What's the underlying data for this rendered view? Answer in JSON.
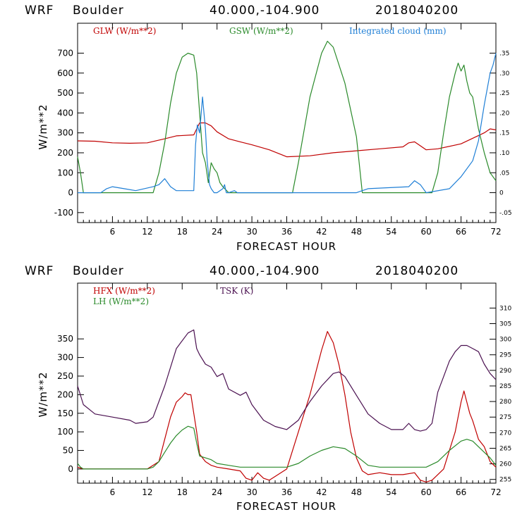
{
  "colors": {
    "red": "#c00000",
    "green": "#2a8a2a",
    "blue": "#1f7fd6",
    "purple": "#4a1050",
    "black": "#000000"
  },
  "chart_data": [
    {
      "type": "line",
      "header": {
        "model": "WRF",
        "site": "Boulder",
        "coords": "40.000,-104.900",
        "init": "2018040200"
      },
      "xlabel": "FORECAST HOUR",
      "ylabel": "W/m**2",
      "xlim": [
        0,
        72
      ],
      "x_ticks": [
        "6",
        "12",
        "18",
        "24",
        "30",
        "36",
        "42",
        "48",
        "54",
        "60",
        "66",
        "72"
      ],
      "ylim": [
        -150,
        850
      ],
      "y_ticks": [
        "-100",
        "0",
        "100",
        "200",
        "300",
        "400",
        "500",
        "600",
        "700"
      ],
      "y2lim": [
        -0.075,
        0.425
      ],
      "y2_ticks": [
        "-.05",
        "0",
        ".05",
        ".10",
        ".15",
        ".20",
        ".25",
        ".30",
        ".35"
      ],
      "legend": [
        "GLW (W/m**2)",
        "GSW (W/m**2)",
        "Integrated cloud (mm)"
      ],
      "series": [
        {
          "name": "GLW (W/m**2)",
          "color": "red",
          "axis": "left",
          "x": [
            0,
            3,
            6,
            9,
            12,
            15,
            17,
            20,
            21,
            22,
            23,
            24,
            26,
            28,
            30,
            33,
            36,
            40,
            44,
            48,
            52,
            56,
            57,
            58,
            59,
            60,
            62,
            66,
            70,
            71,
            72
          ],
          "y": [
            260,
            258,
            250,
            248,
            250,
            270,
            285,
            290,
            350,
            350,
            335,
            305,
            270,
            255,
            240,
            215,
            180,
            185,
            200,
            210,
            220,
            230,
            250,
            255,
            235,
            215,
            220,
            245,
            300,
            320,
            315
          ]
        },
        {
          "name": "GSW (W/m**2)",
          "color": "green",
          "axis": "left",
          "x": [
            0,
            0.5,
            1,
            13,
            14,
            15,
            16,
            17,
            18,
            19,
            20,
            20.5,
            21,
            21.5,
            22,
            22.5,
            23,
            23.5,
            24,
            24.5,
            25,
            26,
            37,
            38,
            40,
            42,
            43,
            44,
            46,
            48,
            49,
            61,
            62,
            63,
            64,
            65,
            65.5,
            66,
            66.5,
            67,
            67.5,
            68,
            69,
            70,
            71,
            72
          ],
          "y": [
            180,
            100,
            0,
            0,
            100,
            250,
            450,
            600,
            680,
            700,
            690,
            600,
            400,
            200,
            150,
            50,
            150,
            120,
            100,
            50,
            30,
            0,
            0,
            150,
            480,
            700,
            760,
            730,
            550,
            280,
            0,
            0,
            100,
            300,
            480,
            600,
            650,
            610,
            640,
            560,
            500,
            480,
            320,
            200,
            100,
            60
          ]
        },
        {
          "name": "Integrated cloud (mm)",
          "color": "blue",
          "axis": "right",
          "x": [
            0,
            4,
            5,
            6,
            8,
            10,
            13,
            14,
            15,
            16,
            17,
            20,
            20.3,
            20.6,
            21,
            21.5,
            22,
            22.3,
            22.7,
            23,
            23.5,
            24,
            24.5,
            25,
            25.3,
            25.6,
            26,
            27,
            27.5,
            28,
            48,
            49,
            50,
            57,
            58,
            59,
            60,
            64,
            66,
            68,
            69,
            70,
            71,
            71.5,
            72
          ],
          "y": [
            0,
            0,
            0.01,
            0.015,
            0.01,
            0.005,
            0.015,
            0.02,
            0.035,
            0.015,
            0.005,
            0.005,
            0.12,
            0.17,
            0.15,
            0.24,
            0.16,
            0.08,
            0.02,
            0.01,
            0,
            0,
            0.005,
            0.01,
            0.02,
            0,
            0,
            0.005,
            0,
            0,
            0,
            0.005,
            0.01,
            0.015,
            0.03,
            0.02,
            0,
            0.01,
            0.04,
            0.08,
            0.13,
            0.22,
            0.3,
            0.32,
            0.35
          ]
        }
      ]
    },
    {
      "type": "line",
      "header": {
        "model": "WRF",
        "site": "Boulder",
        "coords": "40.000,-104.900",
        "init": "2018040200"
      },
      "xlabel": "FORECAST HOUR",
      "ylabel": "W/m**2",
      "xlim": [
        0,
        72
      ],
      "x_ticks": [
        "6",
        "12",
        "18",
        "24",
        "30",
        "36",
        "42",
        "48",
        "54",
        "60",
        "66",
        "72"
      ],
      "ylim": [
        -38,
        500
      ],
      "y_ticks": [
        "0",
        "50",
        "100",
        "150",
        "200",
        "250",
        "300",
        "350"
      ],
      "y2lim": [
        253.8,
        318
      ],
      "y2_ticks": [
        "255",
        "260",
        "265",
        "270",
        "275",
        "280",
        "285",
        "290",
        "295",
        "300",
        "305",
        "310"
      ],
      "legend": [
        "HFX (W/m**2)",
        "LH (W/m**2)",
        "TSK (K)"
      ],
      "series": [
        {
          "name": "HFX (W/m**2)",
          "color": "red",
          "axis": "left",
          "x": [
            0,
            1,
            12,
            14,
            15,
            16,
            17,
            18,
            18.5,
            19,
            19.5,
            20,
            20.5,
            21,
            21.5,
            22,
            23,
            24,
            26,
            28,
            29,
            30,
            31,
            32,
            33,
            34,
            36,
            38,
            40,
            42,
            43,
            44,
            45,
            46,
            47,
            48,
            49,
            50,
            52,
            54,
            56,
            58,
            59,
            60,
            61,
            62,
            63,
            64,
            65,
            66,
            66.5,
            67,
            67.5,
            68,
            69,
            70,
            71,
            72
          ],
          "y": [
            5,
            0,
            0,
            20,
            80,
            140,
            180,
            195,
            205,
            200,
            200,
            150,
            100,
            40,
            30,
            20,
            10,
            5,
            0,
            -5,
            -25,
            -30,
            -10,
            -25,
            -30,
            -20,
            0,
            100,
            200,
            320,
            370,
            340,
            280,
            200,
            100,
            30,
            -5,
            -15,
            -10,
            -15,
            -15,
            -10,
            -30,
            -35,
            -30,
            -15,
            0,
            50,
            100,
            180,
            210,
            180,
            150,
            130,
            80,
            60,
            20,
            5
          ]
        },
        {
          "name": "LH (W/m**2)",
          "color": "green",
          "axis": "left",
          "x": [
            0,
            0.5,
            1,
            12,
            13,
            14,
            15,
            16,
            17,
            18,
            19,
            20,
            20.5,
            21,
            22,
            23,
            24,
            26,
            28,
            30,
            34,
            36,
            38,
            40,
            42,
            44,
            46,
            48,
            50,
            52,
            56,
            60,
            62,
            64,
            66,
            67,
            68,
            69,
            70,
            71,
            72
          ],
          "y": [
            15,
            5,
            0,
            0,
            5,
            20,
            45,
            70,
            90,
            105,
            115,
            110,
            70,
            35,
            30,
            25,
            15,
            10,
            5,
            5,
            5,
            5,
            15,
            35,
            50,
            60,
            55,
            35,
            10,
            5,
            5,
            5,
            20,
            50,
            75,
            80,
            75,
            60,
            45,
            30,
            10
          ]
        },
        {
          "name": "TSK (K)",
          "color": "purple",
          "axis": "right",
          "x": [
            0,
            1,
            3,
            6,
            9,
            10,
            12,
            13,
            15,
            17,
            19,
            20,
            20.5,
            21,
            22,
            23,
            24,
            25,
            26,
            28,
            29,
            30,
            32,
            34,
            36,
            38,
            40,
            42,
            44,
            45,
            46,
            48,
            50,
            52,
            54,
            56,
            57,
            58,
            59,
            60,
            61,
            62,
            63,
            64,
            65,
            66,
            67,
            68,
            69,
            70,
            71,
            72
          ],
          "y": [
            285,
            279,
            276,
            275,
            274,
            273,
            273.5,
            275,
            285,
            297,
            302,
            303,
            297,
            295,
            292,
            291,
            288,
            289,
            284,
            282,
            283,
            279,
            274,
            272,
            271,
            274,
            280,
            285,
            289,
            289.5,
            288,
            282,
            276,
            273,
            271,
            271,
            273,
            271,
            270.5,
            271,
            273,
            283,
            288,
            293,
            296,
            298,
            298,
            297,
            296,
            292,
            289,
            287
          ]
        }
      ]
    }
  ]
}
